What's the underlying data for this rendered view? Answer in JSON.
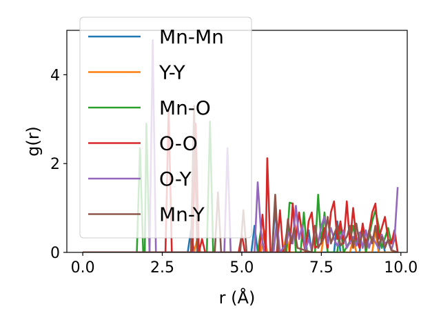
{
  "chart_data": {
    "type": "line",
    "title": "",
    "xlabel": "r (Å)",
    "ylabel": "g(r)",
    "xlim": [
      -0.5,
      10.2
    ],
    "ylim": [
      0,
      5.0
    ],
    "xticks": [
      0.0,
      2.5,
      5.0,
      7.5,
      10.0
    ],
    "xtick_labels": [
      "0.0",
      "2.5",
      "5.0",
      "7.5",
      "10.0"
    ],
    "yticks": [
      0,
      2,
      4
    ],
    "ytick_labels": [
      "0",
      "2",
      "4"
    ],
    "grid": false,
    "legend_position": "upper-left",
    "series": [
      {
        "name": "Mn-Mn",
        "color": "#1f77b4",
        "points": [
          [
            0,
            0
          ],
          [
            3.3,
            0
          ],
          [
            3.4,
            0.5
          ],
          [
            3.5,
            0
          ],
          [
            5.3,
            0
          ],
          [
            5.4,
            0.6
          ],
          [
            5.5,
            0
          ],
          [
            5.95,
            0
          ],
          [
            6.05,
            1.0
          ],
          [
            6.15,
            0
          ],
          [
            7.0,
            0
          ],
          [
            7.1,
            0.5
          ],
          [
            7.2,
            0
          ],
          [
            7.9,
            0
          ],
          [
            8.0,
            0.7
          ],
          [
            8.1,
            0
          ],
          [
            8.7,
            0
          ],
          [
            8.8,
            0.6
          ],
          [
            8.9,
            0
          ],
          [
            9.3,
            0
          ],
          [
            9.4,
            0.4
          ],
          [
            9.5,
            0
          ],
          [
            9.9,
            0
          ]
        ]
      },
      {
        "name": "Y-Y",
        "color": "#ff7f0e",
        "points": [
          [
            0,
            0
          ],
          [
            3.5,
            0
          ],
          [
            3.6,
            0.3
          ],
          [
            3.7,
            0
          ],
          [
            5.6,
            0
          ],
          [
            5.7,
            0.5
          ],
          [
            5.8,
            0
          ],
          [
            6.3,
            0
          ],
          [
            6.4,
            0.4
          ],
          [
            6.5,
            0
          ],
          [
            7.5,
            0
          ],
          [
            7.6,
            0.5
          ],
          [
            7.7,
            0
          ],
          [
            8.4,
            0
          ],
          [
            8.5,
            0.3
          ],
          [
            8.6,
            0
          ],
          [
            9.1,
            0
          ],
          [
            9.2,
            0.5
          ],
          [
            9.3,
            0
          ],
          [
            9.9,
            0
          ]
        ]
      },
      {
        "name": "Mn-O",
        "color": "#2ca02c",
        "points": [
          [
            0,
            0
          ],
          [
            1.7,
            0
          ],
          [
            1.8,
            2.35
          ],
          [
            1.9,
            0
          ],
          [
            1.95,
            0
          ],
          [
            2.0,
            2.9
          ],
          [
            2.1,
            0
          ],
          [
            3.9,
            0
          ],
          [
            4.0,
            2.95
          ],
          [
            4.1,
            0
          ],
          [
            5.5,
            0
          ],
          [
            5.6,
            0.5
          ],
          [
            5.7,
            0
          ],
          [
            6.4,
            0
          ],
          [
            6.5,
            1.12
          ],
          [
            6.6,
            1.1
          ],
          [
            6.7,
            0
          ],
          [
            6.85,
            0
          ],
          [
            6.95,
            0.9
          ],
          [
            7.05,
            0
          ],
          [
            7.3,
            0
          ],
          [
            7.4,
            1.3
          ],
          [
            7.5,
            0.2
          ],
          [
            7.6,
            0.9
          ],
          [
            7.7,
            0
          ],
          [
            8.0,
            0
          ],
          [
            8.1,
            0.6
          ],
          [
            8.2,
            0
          ],
          [
            8.4,
            0.25
          ],
          [
            8.5,
            0.6
          ],
          [
            8.6,
            0.2
          ],
          [
            8.8,
            0.55
          ],
          [
            8.9,
            0
          ],
          [
            9.1,
            0.7
          ],
          [
            9.2,
            0.95
          ],
          [
            9.3,
            0.6
          ],
          [
            9.4,
            0.1
          ],
          [
            9.6,
            0.55
          ],
          [
            9.7,
            0.2
          ],
          [
            9.8,
            0.45
          ],
          [
            9.9,
            0
          ]
        ]
      },
      {
        "name": "O-O",
        "color": "#d62728",
        "points": [
          [
            0,
            0
          ],
          [
            2.6,
            0
          ],
          [
            2.7,
            3.2
          ],
          [
            2.8,
            0
          ],
          [
            3.45,
            0
          ],
          [
            3.55,
            2.9
          ],
          [
            3.65,
            0
          ],
          [
            3.75,
            0.3
          ],
          [
            3.85,
            0
          ],
          [
            4.9,
            0
          ],
          [
            5.0,
            0.4
          ],
          [
            5.1,
            0
          ],
          [
            5.55,
            0
          ],
          [
            5.65,
            0.85
          ],
          [
            5.75,
            0
          ],
          [
            5.8,
            2.12
          ],
          [
            5.9,
            0
          ],
          [
            6.1,
            0
          ],
          [
            6.2,
            0.95
          ],
          [
            6.3,
            0
          ],
          [
            6.5,
            0
          ],
          [
            6.6,
            1.1
          ],
          [
            6.7,
            0.3
          ],
          [
            6.8,
            0.9
          ],
          [
            6.9,
            0.4
          ],
          [
            7.0,
            0
          ],
          [
            7.1,
            0.7
          ],
          [
            7.2,
            0.9
          ],
          [
            7.3,
            0.1
          ],
          [
            7.5,
            0.2
          ],
          [
            7.6,
            0.55
          ],
          [
            7.7,
            0.1
          ],
          [
            7.8,
            0.9
          ],
          [
            7.9,
            1.15
          ],
          [
            8.0,
            0.3
          ],
          [
            8.1,
            0.7
          ],
          [
            8.2,
            0.2
          ],
          [
            8.3,
            1.15
          ],
          [
            8.4,
            0.2
          ],
          [
            8.5,
            1.0
          ],
          [
            8.6,
            0.3
          ],
          [
            8.7,
            0.1
          ],
          [
            8.8,
            0.65
          ],
          [
            8.9,
            0.2
          ],
          [
            9.0,
            0.45
          ],
          [
            9.1,
            0.9
          ],
          [
            9.2,
            1.1
          ],
          [
            9.3,
            0.3
          ],
          [
            9.5,
            0.8
          ],
          [
            9.6,
            0.3
          ],
          [
            9.7,
            0.2
          ],
          [
            9.8,
            0.5
          ],
          [
            9.9,
            0.0
          ]
        ]
      },
      {
        "name": "O-Y",
        "color": "#9467bd",
        "points": [
          [
            0,
            0
          ],
          [
            2.1,
            0
          ],
          [
            2.2,
            4.78
          ],
          [
            2.3,
            0
          ],
          [
            4.45,
            0
          ],
          [
            4.55,
            2.35
          ],
          [
            4.65,
            0
          ],
          [
            5.4,
            0
          ],
          [
            5.5,
            1.58
          ],
          [
            5.6,
            0.5
          ],
          [
            5.7,
            0
          ],
          [
            6.0,
            0
          ],
          [
            6.1,
            0.7
          ],
          [
            6.2,
            0
          ],
          [
            6.4,
            0.2
          ],
          [
            6.5,
            0.5
          ],
          [
            6.6,
            0.2
          ],
          [
            6.7,
            1.05
          ],
          [
            6.8,
            0.3
          ],
          [
            6.9,
            0.6
          ],
          [
            7.0,
            0.05
          ],
          [
            7.1,
            0.3
          ],
          [
            7.2,
            0.05
          ],
          [
            7.3,
            0.6
          ],
          [
            7.4,
            0.2
          ],
          [
            7.5,
            0.6
          ],
          [
            7.6,
            0.8
          ],
          [
            7.7,
            0.2
          ],
          [
            7.8,
            0.55
          ],
          [
            7.9,
            0.3
          ],
          [
            8.0,
            0.15
          ],
          [
            8.2,
            0.5
          ],
          [
            8.3,
            0.1
          ],
          [
            8.5,
            0.35
          ],
          [
            8.6,
            0.15
          ],
          [
            8.7,
            0.45
          ],
          [
            8.8,
            0.1
          ],
          [
            8.9,
            0.5
          ],
          [
            9.0,
            0.1
          ],
          [
            9.1,
            0.35
          ],
          [
            9.3,
            0.1
          ],
          [
            9.4,
            0.4
          ],
          [
            9.5,
            0.2
          ],
          [
            9.6,
            0.25
          ],
          [
            9.7,
            0.05
          ],
          [
            9.8,
            0.3
          ],
          [
            9.9,
            1.47
          ]
        ]
      },
      {
        "name": "Mn-Y",
        "color": "#8c564b",
        "points": [
          [
            0,
            0
          ],
          [
            3.4,
            0
          ],
          [
            3.5,
            3.3
          ],
          [
            3.6,
            0
          ],
          [
            4.15,
            0
          ],
          [
            4.25,
            1.35
          ],
          [
            4.35,
            0
          ],
          [
            4.95,
            0
          ],
          [
            5.05,
            0.95
          ],
          [
            5.15,
            0
          ],
          [
            5.95,
            0
          ],
          [
            6.05,
            1.3
          ],
          [
            6.15,
            0
          ],
          [
            6.35,
            0
          ],
          [
            6.45,
            0.75
          ],
          [
            6.55,
            0.2
          ],
          [
            6.65,
            0.55
          ],
          [
            6.75,
            0.1
          ],
          [
            7.2,
            0
          ],
          [
            7.3,
            0.6
          ],
          [
            7.4,
            0.1
          ],
          [
            7.6,
            0.35
          ],
          [
            7.7,
            0.8
          ],
          [
            7.8,
            0.2
          ],
          [
            8.0,
            0.6
          ],
          [
            8.1,
            0.15
          ],
          [
            8.3,
            0.35
          ],
          [
            8.4,
            0.6
          ],
          [
            8.5,
            0.1
          ],
          [
            8.6,
            0.65
          ],
          [
            8.7,
            0.2
          ],
          [
            8.8,
            0.45
          ],
          [
            8.9,
            0.1
          ],
          [
            9.0,
            0.5
          ],
          [
            9.1,
            0.2
          ],
          [
            9.2,
            0.6
          ],
          [
            9.3,
            0.15
          ],
          [
            9.4,
            0.35
          ],
          [
            9.5,
            0.1
          ],
          [
            9.6,
            0.3
          ],
          [
            9.7,
            0.05
          ],
          [
            9.9,
            0.0
          ]
        ]
      }
    ]
  }
}
